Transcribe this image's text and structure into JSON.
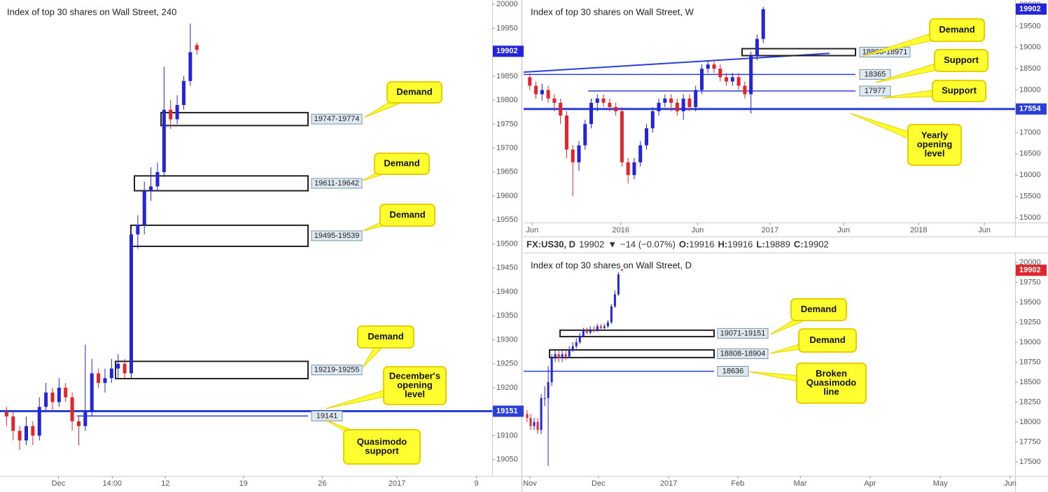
{
  "header": {
    "symbol": "FX:US30, D",
    "price": 19902,
    "arrow": "▼",
    "change": "−14 (−0.07%)",
    "ohlc": [
      {
        "key": "O:",
        "value": 19916
      },
      {
        "key": "H:",
        "value": 19916
      },
      {
        "key": "L:",
        "value": 19889
      },
      {
        "key": "C:",
        "value": 19902
      }
    ]
  },
  "chart_data": [
    {
      "type": "candlestick",
      "title": "Index of top 30 shares on Wall Street, 240",
      "up_color": "#2424d8",
      "down_color": "#e0262c",
      "level_color": "#2a3fd6",
      "xlim": [
        0,
        75
      ],
      "xticks": [
        {
          "value": 8.9,
          "label": "Dec"
        },
        {
          "value": 17.1,
          "label": "14:00"
        },
        {
          "value": 25.2,
          "label": "12"
        },
        {
          "value": 37.1,
          "label": "19"
        },
        {
          "value": 49.1,
          "label": "26"
        },
        {
          "value": 60.5,
          "label": "2017"
        },
        {
          "value": 72.6,
          "label": "9"
        }
      ],
      "ylim": [
        19016,
        20009
      ],
      "yticks": [
        19050,
        19100,
        19150,
        19200,
        19250,
        19300,
        19350,
        19400,
        19450,
        19500,
        19550,
        19600,
        19650,
        19700,
        19750,
        19800,
        19850,
        19900,
        19950,
        20000
      ],
      "open": [
        19150,
        19140,
        19110,
        19090,
        19120,
        19100,
        19160,
        19190,
        19170,
        19200,
        19180,
        19130,
        19120,
        19150,
        19230,
        19210,
        19220,
        19240,
        19250,
        19230,
        19520,
        19540,
        19610,
        19620,
        19650,
        19780,
        19760,
        19790,
        19840,
        19915
      ],
      "high": [
        19160,
        19150,
        19120,
        19140,
        19130,
        19180,
        19210,
        19200,
        19220,
        19210,
        19190,
        19140,
        19290,
        19260,
        19240,
        19240,
        19260,
        19270,
        19260,
        19530,
        19560,
        19630,
        19660,
        19670,
        19870,
        19800,
        19810,
        19850,
        19960,
        19920
      ],
      "low": [
        19120,
        19090,
        19070,
        19080,
        19080,
        19090,
        19150,
        19150,
        19160,
        19170,
        19110,
        19080,
        19110,
        19140,
        19200,
        19190,
        19210,
        19220,
        19220,
        19220,
        19490,
        19520,
        19590,
        19610,
        19640,
        19740,
        19750,
        19780,
        19830,
        19895
      ],
      "close": [
        19140,
        19110,
        19090,
        19120,
        19100,
        19160,
        19190,
        19170,
        19200,
        19180,
        19130,
        19120,
        19150,
        19230,
        19210,
        19220,
        19240,
        19250,
        19230,
        19520,
        19540,
        19610,
        19620,
        19650,
        19780,
        19760,
        19790,
        19840,
        19900,
        19905
      ],
      "zones": [
        {
          "low": 19747,
          "high": 19774,
          "label": "19747-19774"
        },
        {
          "low": 19611,
          "high": 19642,
          "label": "19611-19642"
        },
        {
          "low": 19495,
          "high": 19539,
          "label": "19495-19539"
        },
        {
          "low": 19219,
          "high": 19255,
          "label": "19219-19255"
        }
      ],
      "levels": [
        {
          "value": 19151
        },
        {
          "value": 19141
        }
      ],
      "last_price": {
        "value": 19902,
        "color": "#2424d8"
      },
      "annotations": [
        {
          "lines": [
            "Demand"
          ]
        },
        {
          "lines": [
            "Demand"
          ]
        },
        {
          "lines": [
            "Demand"
          ]
        },
        {
          "lines": [
            "Demand"
          ]
        },
        {
          "lines": [
            "December's",
            "opening",
            "level"
          ]
        },
        {
          "lines": [
            "Quasimodo",
            "support"
          ]
        }
      ]
    },
    {
      "type": "candlestick",
      "title": "Index of top 30 shares on Wall Street, W",
      "up_color": "#2424d8",
      "down_color": "#e0262c",
      "level_color": "#2a3fd6",
      "xlim": [
        0,
        80
      ],
      "xticks": [
        {
          "value": 1.4,
          "label": "Jun"
        },
        {
          "value": 15.8,
          "label": "2016"
        },
        {
          "value": 28.3,
          "label": "Jun"
        },
        {
          "value": 40.1,
          "label": "2017"
        },
        {
          "value": 52.1,
          "label": "Jun"
        },
        {
          "value": 64.3,
          "label": "2018"
        },
        {
          "value": 75.0,
          "label": "Jun"
        }
      ],
      "ylim": [
        14885,
        20115
      ],
      "yticks": [
        15000,
        15500,
        16000,
        16500,
        17000,
        17500,
        18000,
        18500,
        19000,
        19500,
        20000
      ],
      "open": [
        18300,
        18100,
        17900,
        18000,
        17800,
        17700,
        17400,
        16600,
        16300,
        16700,
        17200,
        17700,
        17800,
        17700,
        17600,
        17500,
        16300,
        16000,
        16300,
        16700,
        17100,
        17500,
        17700,
        17800,
        17700,
        17500,
        17800,
        17600,
        18000,
        18500,
        18600,
        18500,
        18300,
        18200,
        18300,
        18100,
        17900,
        18800,
        19200
      ],
      "high": [
        18400,
        18200,
        18150,
        18100,
        17900,
        17800,
        17500,
        16700,
        16800,
        17300,
        17800,
        17900,
        17900,
        17800,
        17700,
        17600,
        16400,
        16400,
        16800,
        17200,
        17600,
        17800,
        17900,
        17900,
        17800,
        17900,
        17900,
        18100,
        18600,
        18700,
        18700,
        18600,
        18400,
        18400,
        18400,
        18200,
        18900,
        19300,
        19950
      ],
      "low": [
        18000,
        17800,
        17750,
        17700,
        17500,
        17200,
        16400,
        15500,
        16100,
        16600,
        17100,
        17500,
        17600,
        17500,
        17400,
        16200,
        15800,
        15900,
        16200,
        16600,
        17000,
        17400,
        17600,
        17500,
        17400,
        17300,
        17500,
        17500,
        17900,
        18400,
        18400,
        18200,
        18100,
        18100,
        18000,
        17800,
        17450,
        18700,
        19100
      ],
      "close": [
        18100,
        17900,
        18000,
        17800,
        17700,
        17400,
        16600,
        16300,
        16700,
        17200,
        17700,
        17800,
        17700,
        17600,
        17500,
        16300,
        16000,
        16300,
        16700,
        17100,
        17500,
        17700,
        17800,
        17700,
        17500,
        17800,
        17600,
        18000,
        18500,
        18600,
        18500,
        18300,
        18200,
        18300,
        18100,
        17900,
        18800,
        19200,
        19900
      ],
      "zones": [
        {
          "low": 18808,
          "high": 18971,
          "label": "18808-18971"
        }
      ],
      "levels": [
        {
          "value": 18365
        },
        {
          "value": 17977
        },
        {
          "value": 17554
        }
      ],
      "trendline": {
        "from": 18420,
        "to": 18860
      },
      "last_price": {
        "value": 19902,
        "color": "#2424d8"
      },
      "annotations": [
        {
          "lines": [
            "Demand"
          ]
        },
        {
          "lines": [
            "Support"
          ]
        },
        {
          "lines": [
            "Support"
          ]
        },
        {
          "lines": [
            "Yearly",
            "opening",
            "level"
          ]
        }
      ]
    },
    {
      "type": "candlestick",
      "title": "Index of top 30 shares on Wall Street, D",
      "up_color": "#2424d8",
      "down_color": "#e0262c",
      "level_color": "#2a3fd6",
      "xlim": [
        0,
        140
      ],
      "xticks": [
        {
          "value": 1.8,
          "label": "Nov"
        },
        {
          "value": 21.3,
          "label": "Dec"
        },
        {
          "value": 41.3,
          "label": "2017"
        },
        {
          "value": 61.0,
          "label": "Feb"
        },
        {
          "value": 78.8,
          "label": "Mar"
        },
        {
          "value": 98.7,
          "label": "Apr"
        },
        {
          "value": 118.7,
          "label": "May"
        },
        {
          "value": 138.6,
          "label": "Jun"
        }
      ],
      "ylim": [
        17325,
        20114
      ],
      "yticks": [
        17500,
        17750,
        18000,
        18250,
        18500,
        18750,
        19000,
        19250,
        19500,
        19750,
        20000
      ],
      "open": [
        18100,
        18050,
        17950,
        18000,
        17900,
        18300,
        18300,
        18500,
        18800,
        18850,
        18800,
        18850,
        18820,
        18900,
        18950,
        19000,
        19080,
        19150,
        19120,
        19160,
        19150,
        19200,
        19180,
        19200,
        19250,
        19450,
        19600,
        19916
      ],
      "high": [
        18150,
        18100,
        18050,
        18050,
        18350,
        18450,
        18700,
        18850,
        18900,
        18900,
        18900,
        18900,
        18950,
        19000,
        19050,
        19120,
        19180,
        19180,
        19200,
        19200,
        19230,
        19230,
        19230,
        19280,
        19480,
        19650,
        19880,
        19916
      ],
      "low": [
        18000,
        17900,
        17900,
        17850,
        17850,
        18200,
        17450,
        18450,
        18750,
        18750,
        18750,
        18780,
        18800,
        18880,
        18920,
        18980,
        19060,
        19100,
        19100,
        19120,
        19130,
        19150,
        19160,
        19180,
        19230,
        19430,
        19580,
        19889
      ],
      "close": [
        18050,
        17950,
        18000,
        17900,
        18300,
        18300,
        18500,
        18800,
        18850,
        18800,
        18850,
        18820,
        18900,
        18950,
        19000,
        19080,
        19150,
        19120,
        19160,
        19150,
        19200,
        19180,
        19200,
        19250,
        19450,
        19600,
        19850,
        19902
      ],
      "zones": [
        {
          "low": 19071,
          "high": 19151,
          "label": "19071-19151"
        },
        {
          "low": 18808,
          "high": 18904,
          "label": "18808-18904"
        }
      ],
      "levels": [
        {
          "value": 18636
        }
      ],
      "last_price": {
        "value": 19902,
        "color": "#e0262c"
      },
      "annotations": [
        {
          "lines": [
            "Demand"
          ]
        },
        {
          "lines": [
            "Demand"
          ]
        },
        {
          "lines": [
            "Broken",
            "Quasimodo",
            "line"
          ]
        }
      ]
    }
  ]
}
